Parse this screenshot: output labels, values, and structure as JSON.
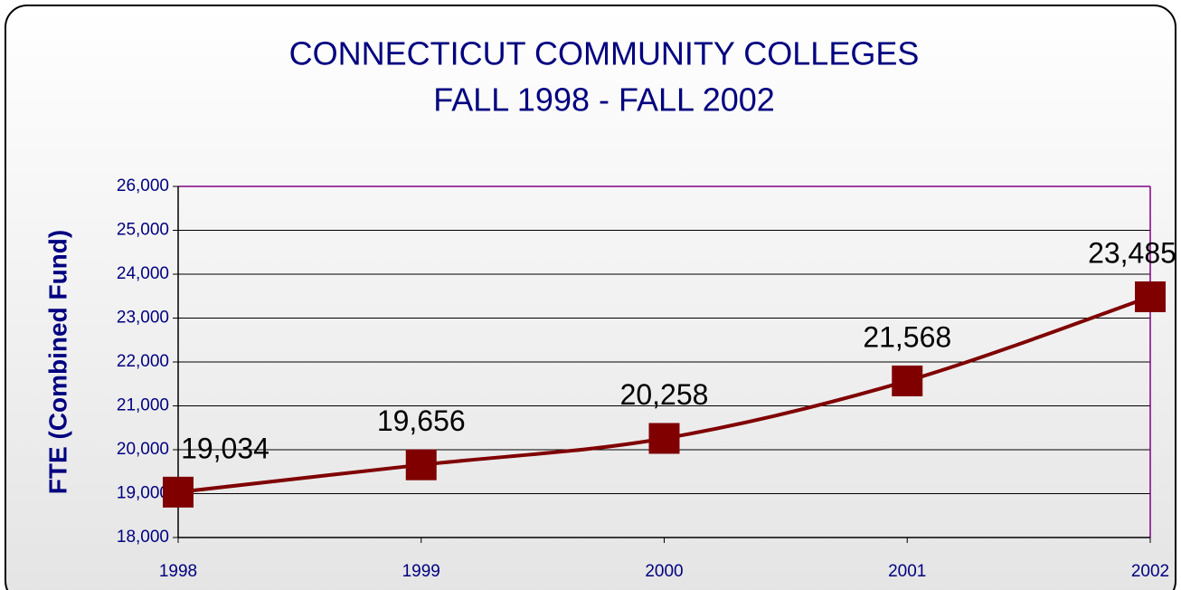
{
  "chart_data": {
    "type": "line",
    "title": "CONNECTICUT COMMUNITY COLLEGES",
    "subtitle": "FALL 1998 - FALL 2002",
    "y_label": "FTE (Combined Fund)",
    "categories": [
      "1998",
      "1999",
      "2000",
      "2001",
      "2002"
    ],
    "series": [
      {
        "name": "FTE",
        "color": "#800000",
        "values": [
          19034,
          19656,
          20258,
          21568,
          23485
        ],
        "value_labels": [
          "19,034",
          "19,656",
          "20,258",
          "21,568",
          "23,485"
        ]
      }
    ],
    "ylim": [
      18000,
      26000
    ],
    "yticks": [
      {
        "value": 18000,
        "label": "18,000"
      },
      {
        "value": 19000,
        "label": "19,000"
      },
      {
        "value": 20000,
        "label": "20,000"
      },
      {
        "value": 21000,
        "label": "21,000"
      },
      {
        "value": 22000,
        "label": "22,000"
      },
      {
        "value": 23000,
        "label": "23,000"
      },
      {
        "value": 24000,
        "label": "24,000"
      },
      {
        "value": 25000,
        "label": "25,000"
      },
      {
        "value": 26000,
        "label": "26,000"
      }
    ],
    "grid": true
  }
}
